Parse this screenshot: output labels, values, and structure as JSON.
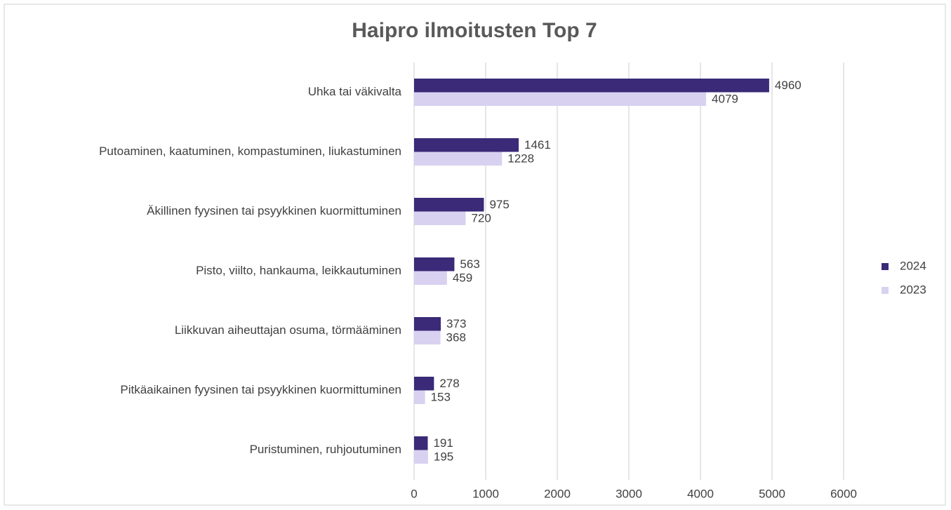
{
  "chart_data": {
    "type": "bar",
    "orientation": "horizontal",
    "title": "Haipro ilmoitusten Top 7",
    "categories": [
      "Uhka tai väkivalta",
      "Putoaminen, kaatuminen, kompastuminen, liukastuminen",
      "Äkillinen fyysinen tai psyykkinen kuormittuminen",
      "Pisto, viilto, hankauma, leikkautuminen",
      "Liikkuvan aiheuttajan osuma, törmääminen",
      "Pitkäaikainen fyysinen tai psyykkinen kuormittuminen",
      "Puristuminen, ruhjoutuminen"
    ],
    "series": [
      {
        "name": "2024",
        "color": "#3a2a77",
        "values": [
          4960,
          1461,
          975,
          563,
          373,
          278,
          191
        ]
      },
      {
        "name": "2023",
        "color": "#d8d1f0",
        "values": [
          4079,
          1228,
          720,
          459,
          368,
          153,
          195
        ]
      }
    ],
    "xlim": [
      0,
      6000
    ],
    "xticks": [
      0,
      1000,
      2000,
      3000,
      4000,
      5000,
      6000
    ],
    "grid": true,
    "legend": "right"
  }
}
